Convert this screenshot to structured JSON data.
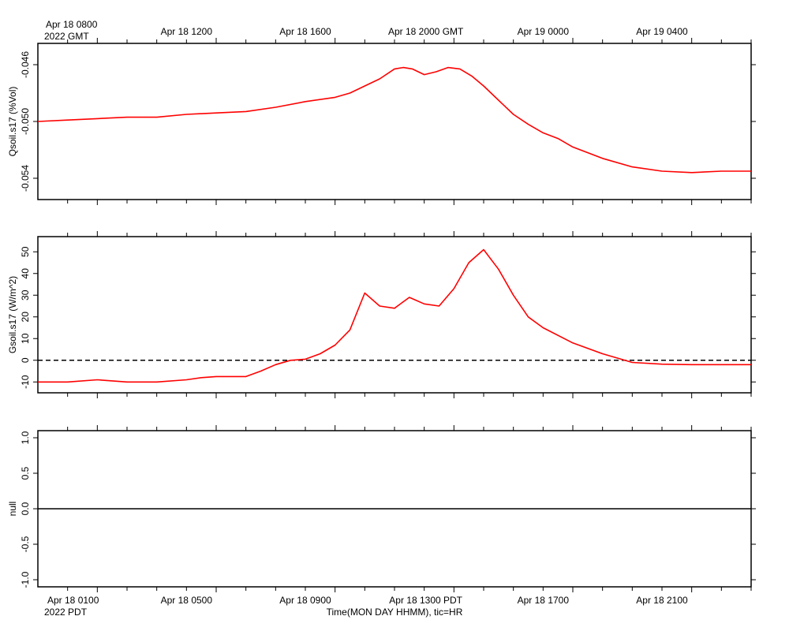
{
  "colors": {
    "series": "#ff0000",
    "axes": "#000000",
    "background": "#ffffff"
  },
  "labels": {
    "top_first_line1": "Apr 18 0800",
    "top_first_line2": "2022 GMT",
    "bottom_first_line1": "Apr 18 0100",
    "bottom_first_line2": "2022 PDT",
    "x_axis_title": "Time(MON DAY HHMM), tic=HR"
  },
  "chart_data": [
    {
      "type": "line",
      "ylabel": "Qsoil.s17 (%Vol)",
      "x_unit": "hours since Apr 18 0000 PDT",
      "xlim": [
        0.0,
        24.0
      ],
      "ylim": [
        -0.0555,
        -0.0445
      ],
      "yticks": [
        -0.046,
        -0.05,
        -0.054
      ],
      "ytick_labels": [
        "-0.046",
        "-0.050",
        "-0.054"
      ],
      "top_tick_labels": [
        "Apr 18 1200",
        "Apr 18 1600",
        "Apr 18 2000 GMT",
        "Apr 19 0000",
        "Apr 19 0400"
      ],
      "top_tick_hours": [
        5,
        9,
        13,
        17,
        21
      ],
      "series": [
        {
          "color": "#ff0000",
          "x": [
            0.0,
            1.0,
            2.0,
            3.0,
            4.0,
            5.0,
            6.0,
            7.0,
            8.0,
            9.0,
            10.0,
            10.5,
            11.0,
            11.5,
            12.0,
            12.3,
            12.6,
            13.0,
            13.4,
            13.8,
            14.2,
            14.6,
            15.0,
            15.5,
            16.0,
            16.5,
            17.0,
            17.5,
            18.0,
            19.0,
            20.0,
            21.0,
            22.0,
            23.0,
            24.0
          ],
          "y": [
            -0.05,
            -0.0499,
            -0.0498,
            -0.0497,
            -0.0497,
            -0.0495,
            -0.0494,
            -0.0493,
            -0.049,
            -0.0486,
            -0.0483,
            -0.048,
            -0.0475,
            -0.047,
            -0.0463,
            -0.0462,
            -0.0463,
            -0.0467,
            -0.0465,
            -0.0462,
            -0.0463,
            -0.0468,
            -0.0475,
            -0.0485,
            -0.0495,
            -0.0502,
            -0.0508,
            -0.0512,
            -0.0518,
            -0.0526,
            -0.0532,
            -0.0535,
            -0.0536,
            -0.0535,
            -0.0535
          ]
        }
      ]
    },
    {
      "type": "line",
      "ylabel": "Gsoil.s17 (W/m^2)",
      "x_unit": "hours since Apr 18 0000 PDT",
      "xlim": [
        0.0,
        24.0
      ],
      "ylim": [
        -15,
        57
      ],
      "yticks": [
        -10,
        0,
        10,
        20,
        30,
        40,
        50
      ],
      "ytick_labels": [
        "-10",
        "0",
        "10",
        "20",
        "30",
        "40",
        "50"
      ],
      "reference_line": {
        "y": 0,
        "style": "dashed"
      },
      "series": [
        {
          "color": "#ff0000",
          "x": [
            0.0,
            1.0,
            2.0,
            3.0,
            4.0,
            5.0,
            5.5,
            6.0,
            7.0,
            7.5,
            8.0,
            8.5,
            9.0,
            9.5,
            10.0,
            10.5,
            11.0,
            11.5,
            12.0,
            12.5,
            13.0,
            13.5,
            14.0,
            14.5,
            15.0,
            15.5,
            16.0,
            16.5,
            17.0,
            18.0,
            19.0,
            19.5,
            20.0,
            21.0,
            22.0,
            23.0,
            24.0
          ],
          "y": [
            -10,
            -10,
            -9,
            -10,
            -10,
            -9,
            -8,
            -7.5,
            -7.5,
            -5,
            -2,
            0,
            0.5,
            3,
            7,
            14,
            31,
            25,
            24,
            29,
            26,
            25,
            33,
            45,
            51,
            42,
            30,
            20,
            15,
            8,
            3,
            1,
            -1,
            -1.8,
            -2,
            -2,
            -2
          ]
        }
      ]
    },
    {
      "type": "line",
      "ylabel": "null",
      "xlim": [
        0.0,
        24.0
      ],
      "ylim": [
        -1.1,
        1.1
      ],
      "yticks": [
        -1.0,
        -0.5,
        0.0,
        0.5,
        1.0
      ],
      "ytick_labels": [
        "-1.0",
        "-0.5",
        "0.0",
        "0.5",
        "1.0"
      ],
      "reference_line": {
        "y": 0,
        "style": "solid"
      },
      "bottom_tick_labels": [
        "Apr 18 0500",
        "Apr 18 0900",
        "Apr 18 1300 PDT",
        "Apr 18 1700",
        "Apr 18 2100"
      ],
      "bottom_tick_hours": [
        5,
        9,
        13,
        17,
        21
      ],
      "series": []
    }
  ]
}
